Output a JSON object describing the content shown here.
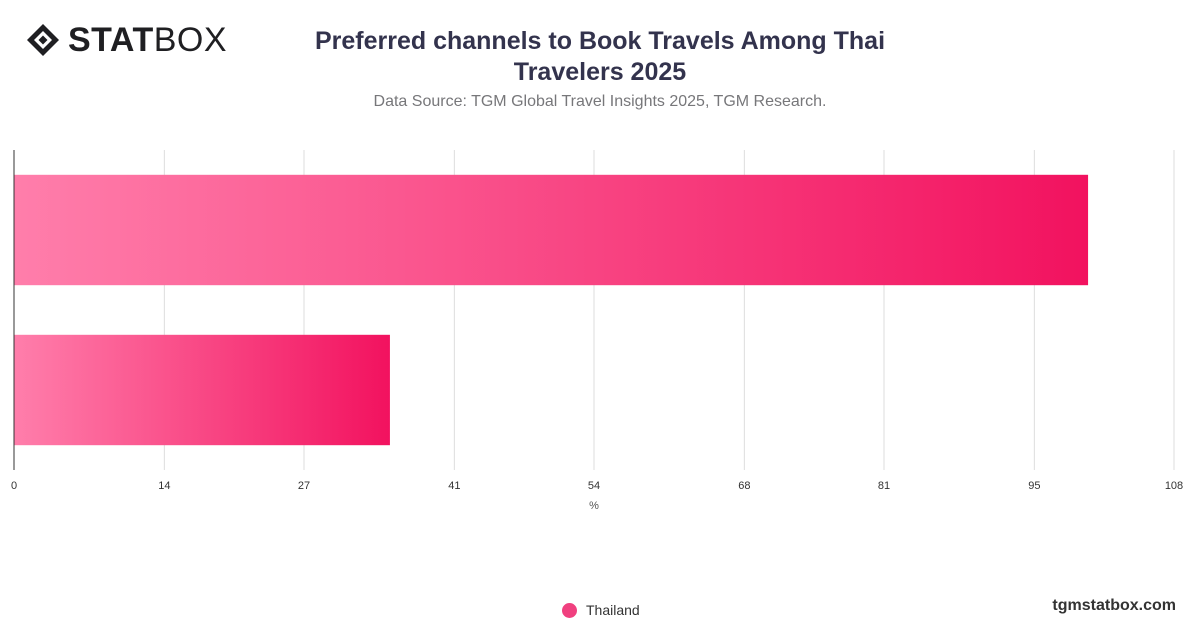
{
  "brand": {
    "logo_bold": "STAT",
    "logo_light": "BOX",
    "website": "tgmstatbox.com"
  },
  "header": {
    "title": "Preferred channels to Book Travels Among Thai Travelers 2025",
    "subtitle": "Data Source: TGM Global Travel Insights 2025, TGM Research."
  },
  "chart_data": {
    "type": "bar",
    "orientation": "horizontal",
    "title": "Preferred channels to Book Travels Among Thai Travelers 2025",
    "subtitle": "Data Source: TGM Global Travel Insights 2025, TGM Research.",
    "categories": [
      "",
      ""
    ],
    "series": [
      {
        "name": "Thailand",
        "values": [
          100,
          35
        ]
      }
    ],
    "xlabel": "%",
    "ylabel": "",
    "xlim": [
      0,
      108
    ],
    "x_ticks": [
      0,
      14,
      27,
      41,
      54,
      68,
      81,
      95,
      108
    ],
    "grid": true,
    "legend": "bottom-center",
    "colors": {
      "bar_start": "#ff7eab",
      "bar_end": "#f2125f",
      "grid": "#dddddd",
      "axis": "#333333"
    }
  },
  "legend": {
    "label": "Thailand",
    "color": "#f0407f"
  }
}
